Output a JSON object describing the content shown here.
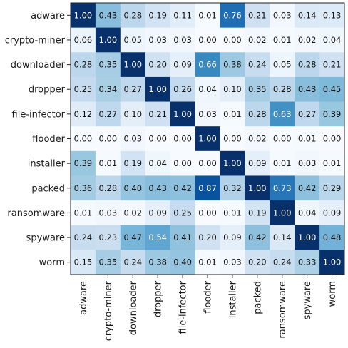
{
  "chart_data": {
    "type": "heatmap",
    "title": "",
    "xlabel": "",
    "ylabel": "",
    "row_labels": [
      "adware",
      "crypto-miner",
      "downloader",
      "dropper",
      "file-infector",
      "flooder",
      "installer",
      "packed",
      "ransomware",
      "spyware",
      "worm"
    ],
    "col_labels": [
      "adware",
      "crypto-miner",
      "downloader",
      "dropper",
      "file-infector",
      "flooder",
      "installer",
      "packed",
      "ransomware",
      "spyware",
      "worm"
    ],
    "values": [
      [
        1.0,
        0.43,
        0.28,
        0.19,
        0.11,
        0.01,
        0.76,
        0.21,
        0.03,
        0.14,
        0.13
      ],
      [
        0.06,
        1.0,
        0.05,
        0.03,
        0.03,
        0.0,
        0.0,
        0.02,
        0.01,
        0.02,
        0.04
      ],
      [
        0.28,
        0.35,
        1.0,
        0.2,
        0.09,
        0.66,
        0.38,
        0.24,
        0.05,
        0.28,
        0.21
      ],
      [
        0.25,
        0.34,
        0.27,
        1.0,
        0.26,
        0.04,
        0.1,
        0.35,
        0.28,
        0.43,
        0.45
      ],
      [
        0.12,
        0.27,
        0.1,
        0.21,
        1.0,
        0.03,
        0.01,
        0.28,
        0.63,
        0.27,
        0.39
      ],
      [
        0.0,
        0.0,
        0.03,
        0.0,
        0.0,
        1.0,
        0.0,
        0.02,
        0.0,
        0.01,
        0.0
      ],
      [
        0.39,
        0.01,
        0.19,
        0.04,
        0.0,
        0.0,
        1.0,
        0.09,
        0.01,
        0.03,
        0.01
      ],
      [
        0.36,
        0.28,
        0.4,
        0.43,
        0.42,
        0.87,
        0.32,
        1.0,
        0.73,
        0.42,
        0.29
      ],
      [
        0.01,
        0.03,
        0.02,
        0.09,
        0.25,
        0.0,
        0.01,
        0.19,
        1.0,
        0.04,
        0.09
      ],
      [
        0.24,
        0.23,
        0.47,
        0.54,
        0.41,
        0.2,
        0.09,
        0.42,
        0.14,
        1.0,
        0.48
      ],
      [
        0.15,
        0.35,
        0.24,
        0.38,
        0.4,
        0.01,
        0.03,
        0.2,
        0.24,
        0.33,
        1.0
      ]
    ],
    "value_format": "0.00",
    "colormap": "Blues",
    "value_range": [
      0,
      1
    ],
    "grid": false
  }
}
